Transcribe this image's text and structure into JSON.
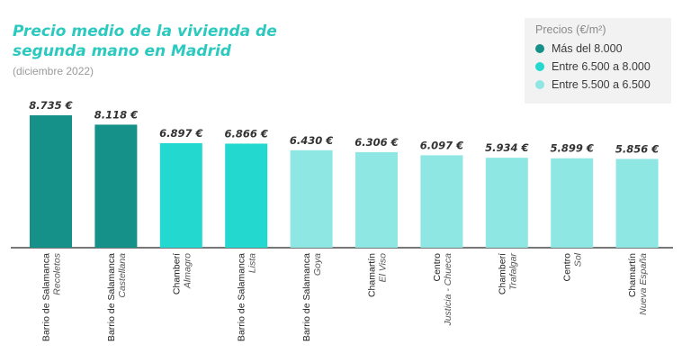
{
  "title": "Precio medio de la vivienda de segunda mano en Madrid",
  "subtitle": "(diciembre 2022)",
  "legend": {
    "title": "Precios (€/m²)",
    "items": [
      {
        "label": "Más del 8.000",
        "color": "#16918a"
      },
      {
        "label": "Entre 6.500 a 8.000",
        "color": "#23d9cf"
      },
      {
        "label": "Entre 5.500 a 6.500",
        "color": "#8ee7e3"
      }
    ]
  },
  "chart_data": {
    "type": "bar",
    "title": "Precio medio de la vivienda de segunda mano en Madrid",
    "ylabel": "",
    "xlabel": "",
    "ylim": [
      0,
      9000
    ],
    "grid": false,
    "legend_position": "top-right",
    "categories": [
      {
        "district": "Barrio de Salamanca",
        "neighborhood": "Recoletos"
      },
      {
        "district": "Barrio de Salamanca",
        "neighborhood": "Castellana"
      },
      {
        "district": "Chamberí",
        "neighborhood": "Almagro"
      },
      {
        "district": "Barrio de Salamanca",
        "neighborhood": "Lista"
      },
      {
        "district": "Barrio de Salamanca",
        "neighborhood": "Goya"
      },
      {
        "district": "Chamartín",
        "neighborhood": "El Viso"
      },
      {
        "district": "Centro",
        "neighborhood": "Justicia - Chueca"
      },
      {
        "district": "Chamberí",
        "neighborhood": "Trafalgar"
      },
      {
        "district": "Centro",
        "neighborhood": "Sol"
      },
      {
        "district": "Chamartín",
        "neighborhood": "Nueva España"
      }
    ],
    "values": [
      8735,
      8118,
      6897,
      6866,
      6430,
      6306,
      6097,
      5934,
      5899,
      5856
    ],
    "value_labels": [
      "8.735 €",
      "8.118 €",
      "6.897 €",
      "6.866 €",
      "6.430 €",
      "6.306 €",
      "6.097 €",
      "5.934 €",
      "5.899 €",
      "5.856 €"
    ],
    "bar_colors": [
      "#16918a",
      "#16918a",
      "#23d9cf",
      "#23d9cf",
      "#8ee7e3",
      "#8ee7e3",
      "#8ee7e3",
      "#8ee7e3",
      "#8ee7e3",
      "#8ee7e3"
    ]
  }
}
